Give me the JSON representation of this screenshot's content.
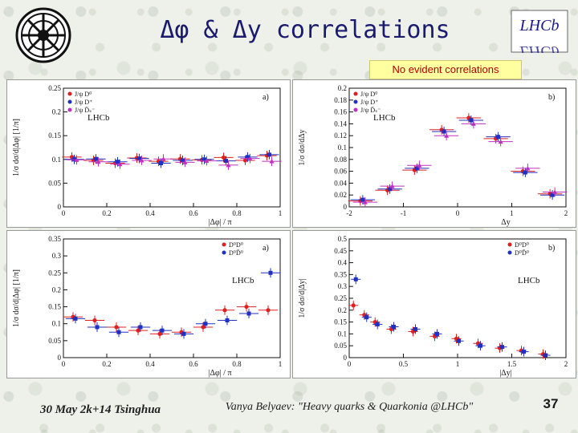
{
  "slide": {
    "title": "Δφ & Δy correlations",
    "subtitle": "No evident correlations",
    "footer_left": "30 May 2k+14 Tsinghua",
    "footer_center": "Vanya Belyaev: \"Heavy quarks & Quarkonia @LHCb\"",
    "page_number": "37",
    "logo_right_text": "LHCb"
  },
  "chart_data": [
    {
      "type": "scatter",
      "panel_label": "a)",
      "experiment_label": "LHCb",
      "xlabel": "|Δφ| / π",
      "ylabel": "1/σ dσ/d|Δφ| [1/π]",
      "xlim": [
        0,
        1
      ],
      "ylim": [
        0,
        0.25
      ],
      "x_ticks": [
        "0",
        "0.2",
        "0.4",
        "0.6",
        "0.8",
        "1"
      ],
      "y_ticks": [
        "0",
        "0.05",
        "0.1",
        "0.15",
        "0.2",
        "0.25"
      ],
      "legend_position": "top-left",
      "series": [
        {
          "name": "J/ψ D⁰",
          "color": "#e02020",
          "marker": "circle",
          "x": [
            0.05,
            0.15,
            0.25,
            0.35,
            0.45,
            0.55,
            0.65,
            0.75,
            0.85,
            0.95
          ],
          "y": [
            0.105,
            0.098,
            0.092,
            0.103,
            0.096,
            0.101,
            0.099,
            0.104,
            0.098,
            0.108
          ]
        },
        {
          "name": "J/ψ D⁺",
          "color": "#2030c0",
          "marker": "square",
          "x": [
            0.05,
            0.15,
            0.25,
            0.35,
            0.45,
            0.55,
            0.65,
            0.75,
            0.85,
            0.95
          ],
          "y": [
            0.1,
            0.101,
            0.095,
            0.102,
            0.092,
            0.098,
            0.1,
            0.097,
            0.105,
            0.11
          ]
        },
        {
          "name": "J/ψ D̄ₛ⁻",
          "color": "#c030c0",
          "marker": "triangle",
          "x": [
            0.05,
            0.15,
            0.25,
            0.35,
            0.45,
            0.55,
            0.65,
            0.75,
            0.85,
            0.95
          ],
          "y": [
            0.099,
            0.095,
            0.09,
            0.098,
            0.101,
            0.094,
            0.097,
            0.088,
            0.102,
            0.096
          ]
        }
      ]
    },
    {
      "type": "scatter",
      "panel_label": "b)",
      "experiment_label": "LHCb",
      "xlabel": "Δy",
      "ylabel": "1/σ dσ/dΔy",
      "xlim": [
        -2,
        2
      ],
      "ylim": [
        0,
        0.2
      ],
      "x_ticks": [
        "-2",
        "-1",
        "0",
        "1",
        "2"
      ],
      "y_ticks": [
        "0",
        "0.02",
        "0.04",
        "0.06",
        "0.08",
        "0.1",
        "0.12",
        "0.14",
        "0.16",
        "0.18",
        "0.2"
      ],
      "legend_position": "top-left",
      "series": [
        {
          "name": "J/ψ D⁰",
          "color": "#e02020",
          "marker": "circle",
          "x": [
            -1.75,
            -1.25,
            -0.75,
            -0.25,
            0.25,
            0.75,
            1.25,
            1.75
          ],
          "y": [
            0.01,
            0.028,
            0.062,
            0.13,
            0.15,
            0.115,
            0.06,
            0.022
          ]
        },
        {
          "name": "J/ψ D⁺",
          "color": "#2030c0",
          "marker": "square",
          "x": [
            -1.75,
            -1.25,
            -0.75,
            -0.25,
            0.25,
            0.75,
            1.25,
            1.75
          ],
          "y": [
            0.012,
            0.03,
            0.065,
            0.127,
            0.146,
            0.118,
            0.058,
            0.02
          ]
        },
        {
          "name": "J/ψ D̄ₛ⁻",
          "color": "#c030c0",
          "marker": "triangle",
          "x": [
            -1.75,
            -1.25,
            -0.75,
            -0.25,
            0.25,
            0.75,
            1.25,
            1.75
          ],
          "y": [
            0.008,
            0.035,
            0.07,
            0.12,
            0.14,
            0.11,
            0.065,
            0.025
          ]
        }
      ]
    },
    {
      "type": "scatter",
      "panel_label": "a)",
      "experiment_label": "LHCb",
      "xlabel": "|Δφ| / π",
      "ylabel": "1/σ dσ/d|Δφ| [1/π]",
      "xlim": [
        0,
        1
      ],
      "ylim": [
        0,
        0.35
      ],
      "x_ticks": [
        "0",
        "0.2",
        "0.4",
        "0.6",
        "0.8",
        "1"
      ],
      "y_ticks": [
        "0",
        "0.05",
        "0.1",
        "0.15",
        "0.2",
        "0.25",
        "0.3",
        "0.35"
      ],
      "legend_position": "top-right",
      "series": [
        {
          "name": "D⁰D⁰",
          "color": "#e02020",
          "marker": "circle",
          "x": [
            0.05,
            0.15,
            0.25,
            0.35,
            0.45,
            0.55,
            0.65,
            0.75,
            0.85,
            0.95
          ],
          "y": [
            0.12,
            0.11,
            0.09,
            0.08,
            0.07,
            0.075,
            0.09,
            0.14,
            0.15,
            0.14
          ]
        },
        {
          "name": "D⁰D̄⁰",
          "color": "#2030c0",
          "marker": "square",
          "x": [
            0.05,
            0.15,
            0.25,
            0.35,
            0.45,
            0.55,
            0.65,
            0.75,
            0.85,
            0.95
          ],
          "y": [
            0.115,
            0.09,
            0.075,
            0.09,
            0.08,
            0.07,
            0.1,
            0.11,
            0.13,
            0.25
          ]
        }
      ]
    },
    {
      "type": "scatter",
      "panel_label": "b)",
      "experiment_label": "LHCb",
      "xlabel": "|Δy|",
      "ylabel": "1/σ dσ/d|Δy|",
      "xlim": [
        0,
        2
      ],
      "ylim": [
        0,
        0.5
      ],
      "x_ticks": [
        "0",
        "0.5",
        "1",
        "1.5",
        "2"
      ],
      "y_ticks": [
        "0",
        "0.05",
        "0.1",
        "0.15",
        "0.2",
        "0.25",
        "0.3",
        "0.35",
        "0.4",
        "0.45",
        "0.5"
      ],
      "legend_position": "top-right",
      "series": [
        {
          "name": "D⁰D⁰",
          "color": "#e02020",
          "marker": "circle",
          "x": [
            0.05,
            0.15,
            0.25,
            0.4,
            0.6,
            0.8,
            1.0,
            1.2,
            1.4,
            1.6,
            1.8
          ],
          "y": [
            0.22,
            0.18,
            0.15,
            0.12,
            0.11,
            0.09,
            0.08,
            0.06,
            0.04,
            0.03,
            0.015
          ]
        },
        {
          "name": "D⁰D̄⁰",
          "color": "#2030c0",
          "marker": "square",
          "x": [
            0.05,
            0.15,
            0.25,
            0.4,
            0.6,
            0.8,
            1.0,
            1.2,
            1.4,
            1.6,
            1.8
          ],
          "y": [
            0.33,
            0.17,
            0.14,
            0.13,
            0.12,
            0.1,
            0.07,
            0.05,
            0.045,
            0.025,
            0.01
          ]
        }
      ]
    }
  ]
}
